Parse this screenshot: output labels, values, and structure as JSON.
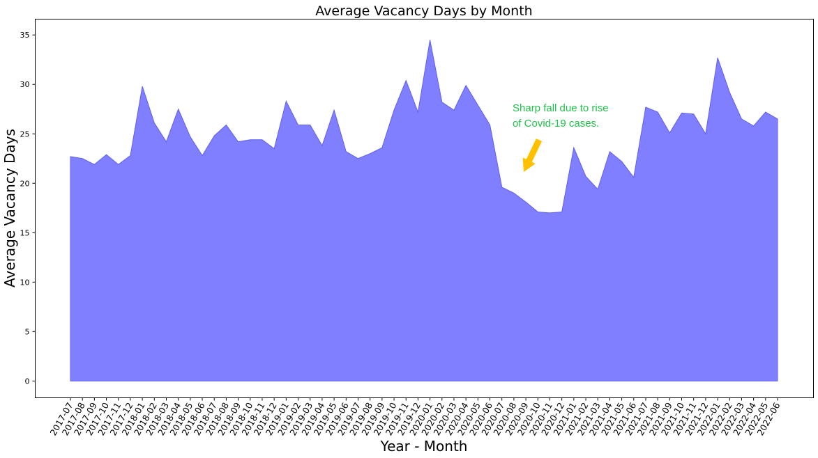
{
  "chart_data": {
    "type": "area",
    "title": "Average Vacancy Days by Month",
    "xlabel": "Year - Month",
    "ylabel": "Average Vacancy Days",
    "ylim": [
      -1.7,
      36.6
    ],
    "yticks": [
      0,
      5,
      10,
      15,
      20,
      25,
      30,
      35
    ],
    "grid": false,
    "colors": {
      "fill": "#7f7fff",
      "line": "#5f5ff0",
      "annotation_text": "#1fc24a",
      "arrow": "#ffc000"
    },
    "categories": [
      "2017-07",
      "2017-08",
      "2017-09",
      "2017-10",
      "2017-11",
      "2017-12",
      "2018-01",
      "2018-02",
      "2018-03",
      "2018-04",
      "2018-05",
      "2018-06",
      "2018-07",
      "2018-08",
      "2018-09",
      "2018-10",
      "2018-11",
      "2018-12",
      "2019-01",
      "2019-02",
      "2019-03",
      "2019-04",
      "2019-05",
      "2019-06",
      "2019-07",
      "2019-08",
      "2019-09",
      "2019-10",
      "2019-11",
      "2019-12",
      "2020-01",
      "2020-02",
      "2020-03",
      "2020-04",
      "2020-05",
      "2020-06",
      "2020-07",
      "2020-08",
      "2020-09",
      "2020-10",
      "2020-11",
      "2020-12",
      "2021-01",
      "2021-02",
      "2021-03",
      "2021-04",
      "2021-05",
      "2021-06",
      "2021-07",
      "2021-08",
      "2021-09",
      "2021-10",
      "2021-11",
      "2021-12",
      "2022-01",
      "2022-02",
      "2022-03",
      "2022-04",
      "2022-05",
      "2022-06"
    ],
    "values": [
      22.7,
      22.5,
      21.9,
      22.9,
      21.9,
      22.8,
      29.8,
      26.1,
      24.2,
      27.5,
      24.7,
      22.8,
      24.8,
      25.9,
      24.2,
      24.4,
      24.4,
      23.5,
      28.3,
      25.9,
      25.9,
      23.8,
      27.4,
      23.2,
      22.5,
      23.0,
      23.6,
      27.4,
      30.4,
      27.2,
      34.5,
      28.2,
      27.4,
      29.9,
      27.9,
      25.9,
      19.6,
      19.0,
      18.1,
      17.1,
      17.0,
      17.1,
      23.6,
      20.7,
      19.4,
      23.2,
      22.2,
      20.6,
      27.7,
      27.2,
      25.1,
      27.1,
      27.0,
      25.0,
      32.7,
      29.2,
      26.5,
      25.8,
      27.2,
      26.5
    ],
    "annotation": {
      "lines": [
        "Sharp fall due to rise",
        "of Covid-19 cases."
      ]
    }
  }
}
